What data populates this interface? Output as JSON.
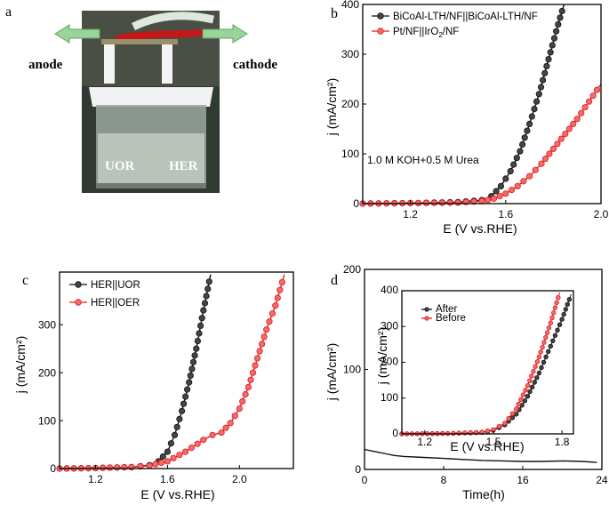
{
  "photo": {
    "letter": "a",
    "anode_label": "anode",
    "cathode_label": "cathode",
    "uor_label": "UOR",
    "her_label": "HER"
  },
  "colors": {
    "black_series": "#111111",
    "red_series": "#e31a1c",
    "arrow_green": "#9bd39b"
  },
  "chart_data": [
    {
      "id": "b",
      "type": "line",
      "letter": "b",
      "xlabel": "E (V vs.RHE)",
      "ylabel": "j (mA/cm²)",
      "xlim": [
        1.0,
        2.0
      ],
      "ylim": [
        0,
        400
      ],
      "xticks": [
        1.2,
        1.6,
        2.0
      ],
      "xtick_labels": [
        "1.2",
        "1.6",
        "2.0"
      ],
      "yticks": [
        0,
        100,
        200,
        300,
        400
      ],
      "ytick_labels": [
        "0",
        "100",
        "200",
        "300",
        "400"
      ],
      "legend_position": "top-left",
      "annotation": "1.0 M KOH+0.5 M Urea",
      "series": [
        {
          "name": "BiCoAl-LTH/NF||BiCoAl-LTH/NF",
          "color": "black",
          "x": [
            1.0,
            1.2,
            1.4,
            1.5,
            1.54,
            1.58,
            1.62,
            1.66,
            1.7,
            1.74,
            1.78,
            1.82,
            1.845
          ],
          "y": [
            0,
            1,
            3,
            7,
            15,
            35,
            65,
            105,
            160,
            220,
            290,
            360,
            400
          ]
        },
        {
          "name": "Pt/NF||IrO2/NF",
          "color": "red",
          "x": [
            1.0,
            1.2,
            1.4,
            1.5,
            1.55,
            1.6,
            1.65,
            1.7,
            1.75,
            1.8,
            1.85,
            1.9,
            1.95,
            2.0
          ],
          "y": [
            0,
            1,
            2,
            5,
            10,
            20,
            35,
            55,
            80,
            110,
            140,
            170,
            205,
            240
          ]
        }
      ]
    },
    {
      "id": "c",
      "type": "line",
      "letter": "c",
      "xlabel": "E (V vs.RHE)",
      "ylabel": "j (mA/cm²)",
      "xlim": [
        1.0,
        2.3
      ],
      "ylim": [
        0,
        410
      ],
      "xticks": [
        1.2,
        1.6,
        2.0
      ],
      "xtick_labels": [
        "1.2",
        "1.6",
        "2.0"
      ],
      "yticks": [
        0,
        100,
        200,
        300
      ],
      "ytick_labels": [
        "0",
        "100",
        "200",
        "300"
      ],
      "legend_position": "top-left",
      "series": [
        {
          "name": "HER||UOR",
          "color": "black",
          "x": [
            1.0,
            1.2,
            1.4,
            1.5,
            1.55,
            1.6,
            1.64,
            1.68,
            1.72,
            1.76,
            1.8,
            1.84
          ],
          "y": [
            0,
            1,
            3,
            7,
            15,
            35,
            70,
            120,
            180,
            250,
            330,
            405
          ]
        },
        {
          "name": "HER||OER",
          "color": "red",
          "x": [
            1.0,
            1.2,
            1.4,
            1.5,
            1.6,
            1.7,
            1.8,
            1.85,
            1.9,
            1.95,
            2.0,
            2.05,
            2.1,
            2.15,
            2.2,
            2.25
          ],
          "y": [
            0,
            1,
            3,
            6,
            15,
            35,
            60,
            70,
            75,
            95,
            125,
            170,
            230,
            290,
            340,
            405
          ]
        }
      ]
    },
    {
      "id": "d",
      "type": "line",
      "letter": "d",
      "xlabel": "Time(h)",
      "ylabel": "j (mA/cm²)",
      "xlim": [
        0,
        24
      ],
      "ylim": [
        0,
        200
      ],
      "xticks": [
        0,
        8,
        16,
        24
      ],
      "xtick_labels": [
        "0",
        "8",
        "16",
        "24"
      ],
      "yticks": [
        0,
        100,
        200
      ],
      "ytick_labels": [
        "0",
        "100",
        "200"
      ],
      "series": [
        {
          "name": "",
          "color": "black",
          "x": [
            0,
            1,
            2,
            3,
            4,
            6,
            8,
            10,
            12,
            14,
            16,
            18,
            20,
            22,
            23.5
          ],
          "y": [
            20,
            18,
            16,
            14,
            13,
            12,
            11,
            10,
            9,
            8.5,
            8,
            8,
            8.5,
            8,
            7
          ]
        }
      ]
    },
    {
      "id": "d-inset",
      "type": "line",
      "xlabel": "E (V vs.RHE)",
      "ylabel": "j (mA/cm²)",
      "xlim": [
        1.1,
        1.85
      ],
      "ylim": [
        0,
        400
      ],
      "xticks": [
        1.2,
        1.5,
        1.8
      ],
      "xtick_labels": [
        "1.2",
        "1.5",
        "1.8"
      ],
      "yticks": [
        0,
        100,
        200,
        300,
        400
      ],
      "ytick_labels": [
        "0",
        "100",
        "200",
        "300",
        "400"
      ],
      "legend_position": "top-left",
      "series": [
        {
          "name": "After",
          "color": "black",
          "x": [
            1.1,
            1.3,
            1.45,
            1.5,
            1.55,
            1.6,
            1.65,
            1.7,
            1.75,
            1.8,
            1.84
          ],
          "y": [
            0,
            1,
            4,
            10,
            25,
            55,
            105,
            170,
            245,
            320,
            390
          ]
        },
        {
          "name": "Before",
          "color": "red",
          "x": [
            1.1,
            1.3,
            1.45,
            1.5,
            1.55,
            1.6,
            1.65,
            1.7,
            1.75,
            1.79
          ],
          "y": [
            0,
            1,
            5,
            12,
            30,
            70,
            135,
            215,
            310,
            395
          ]
        }
      ]
    }
  ]
}
